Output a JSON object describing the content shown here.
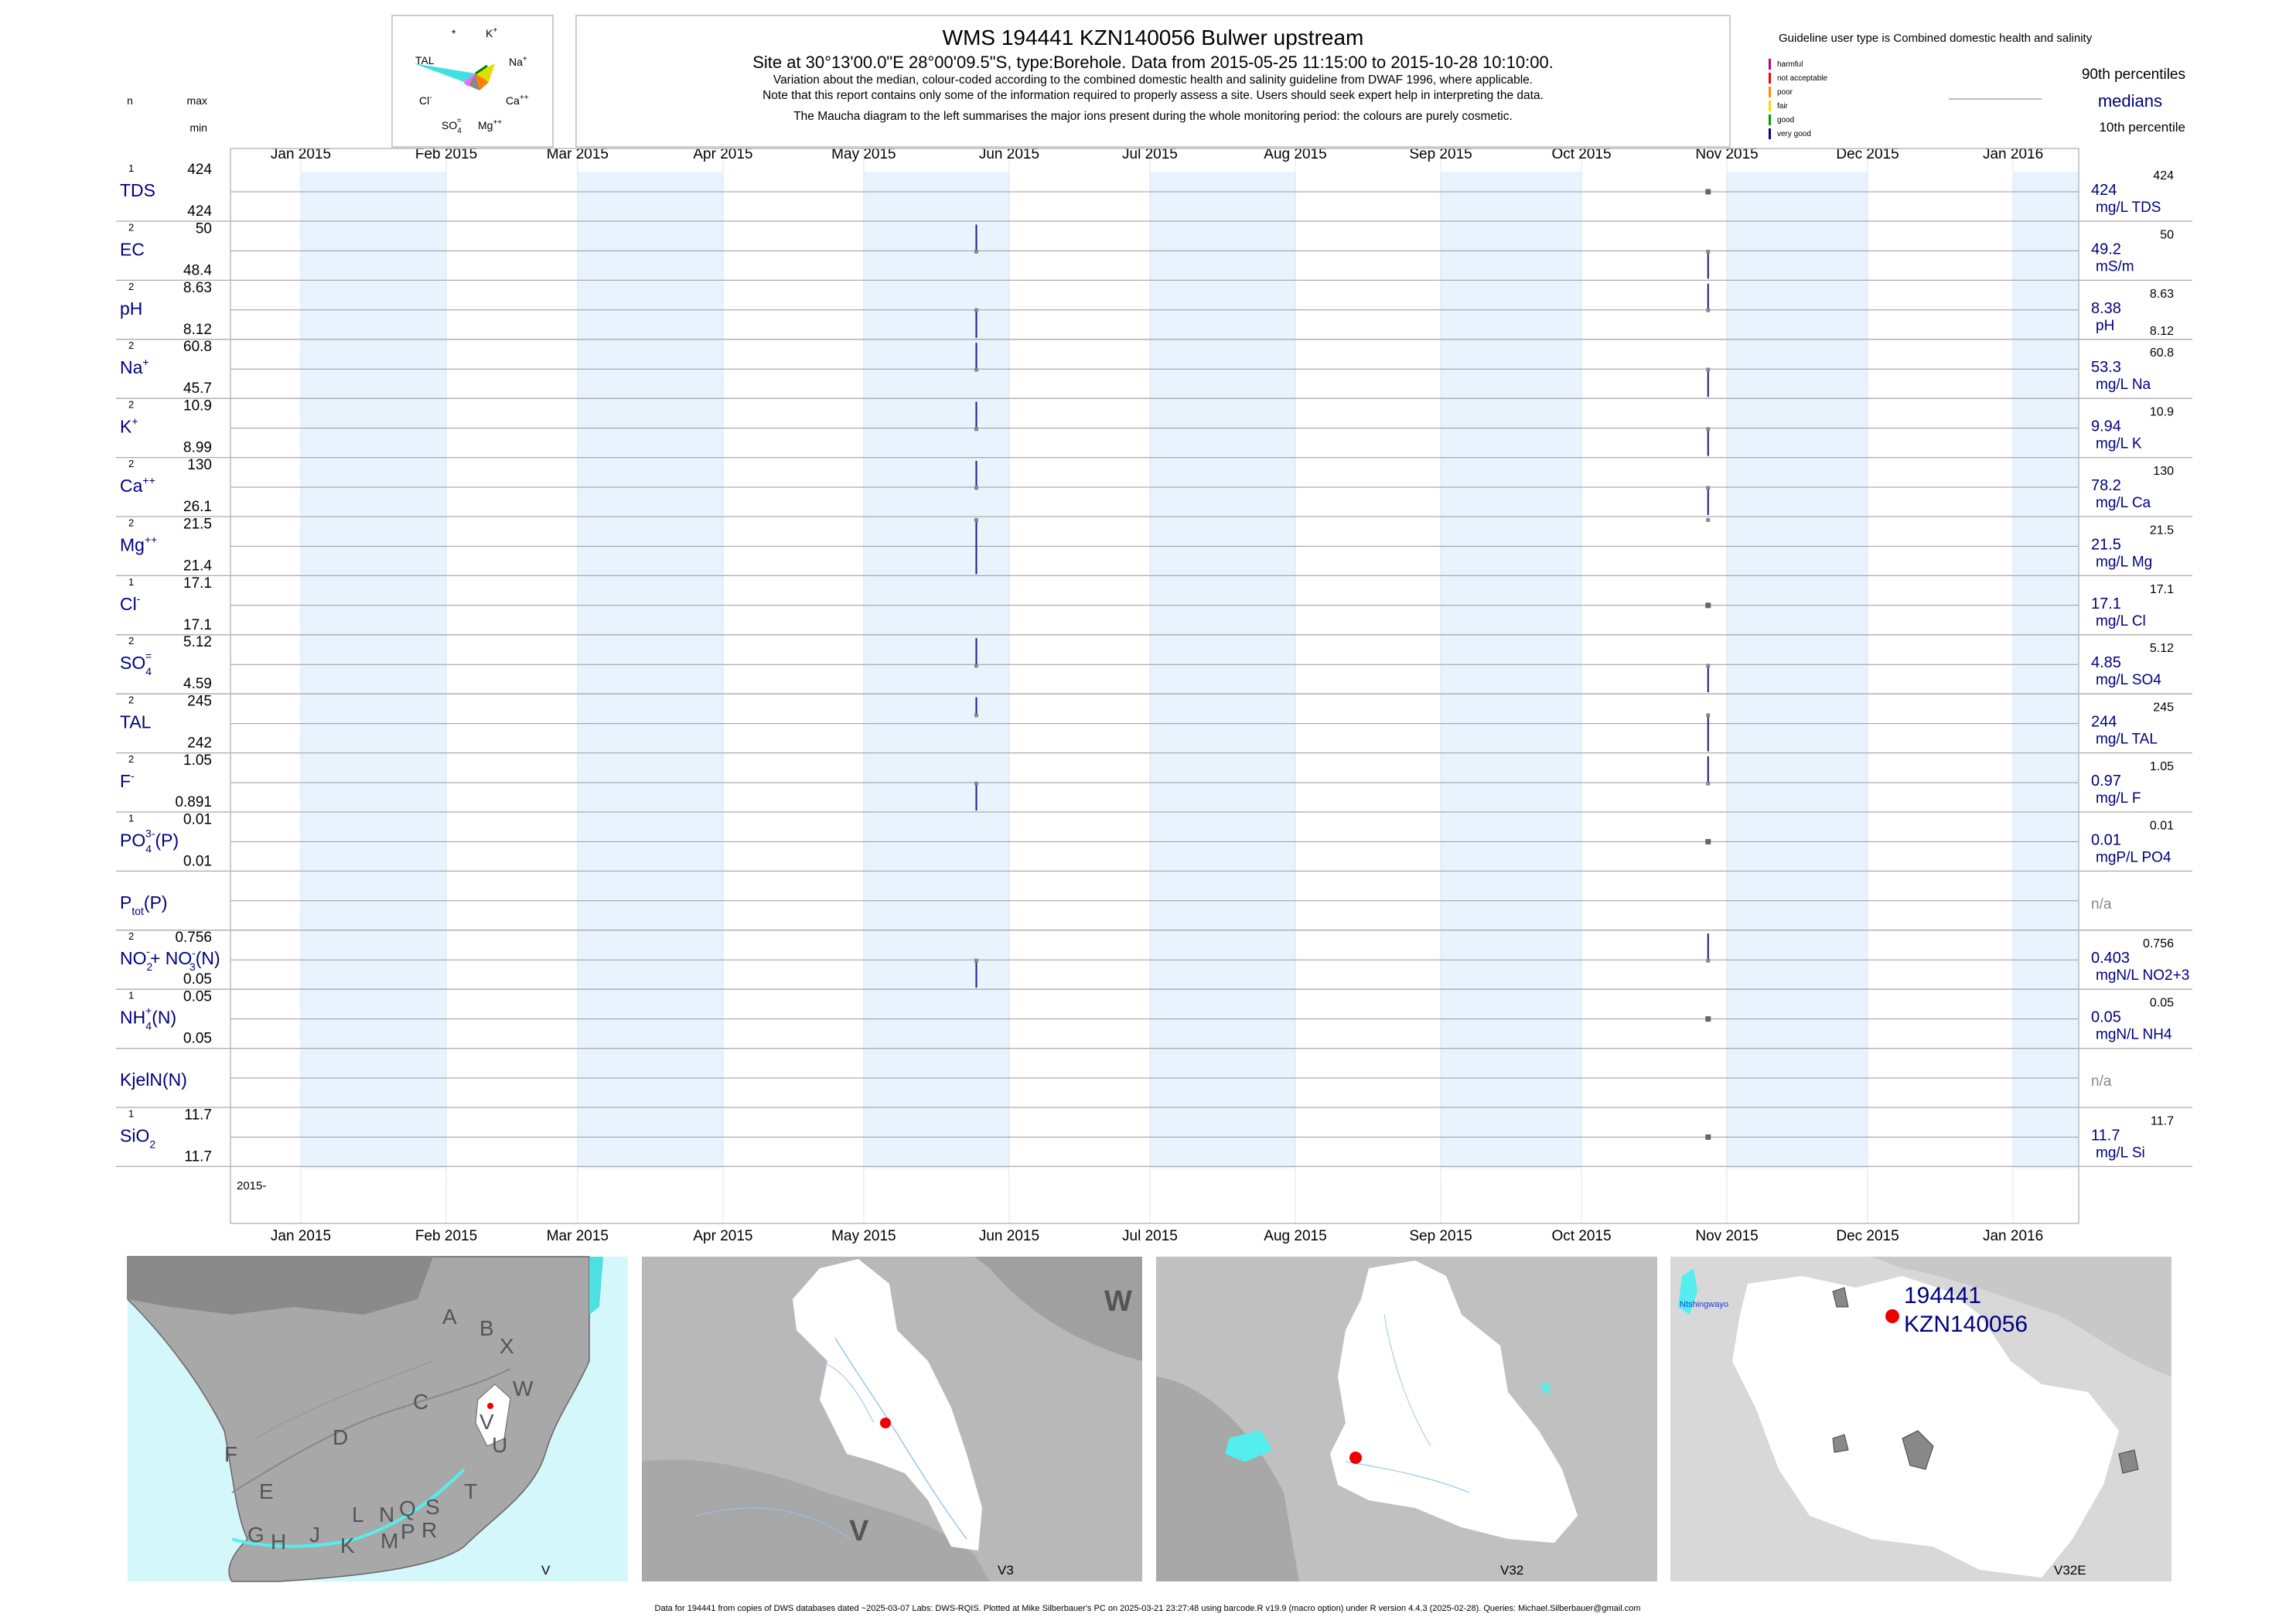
{
  "header": {
    "title": "WMS 194441 KZN140056 Bulwer upstream",
    "subtitle": "Site at 30°13'00.0\"E 28°00'09.5\"S, type:Borehole.  Data from 2015-05-25 11:15:00 to 2015-10-28 10:10:00.",
    "note1": "Variation about the median,  colour-coded according to the combined domestic health and salinity guideline from DWAF 1996, where applicable.",
    "note2": "Note that this report contains only some of the information required to properly assess a site. Users should seek expert help in interpreting the data.",
    "note3": "The Maucha diagram to the left summarises the major ions present during the whole monitoring period: the colours are purely cosmetic."
  },
  "left_header": {
    "n": "n",
    "max": "max",
    "min": "min"
  },
  "maucha": {
    "labels": {
      "star": "*",
      "k": "K",
      "k_sup": "+",
      "tal": "TAL",
      "na": "Na",
      "na_sup": "+",
      "cl": "Cl",
      "cl_sup": "-",
      "ca": "Ca",
      "ca_sup": "++",
      "so4": "SO",
      "so4_sub": "4",
      "so4_sup": "=",
      "mg": "Mg",
      "mg_sup": "++"
    }
  },
  "guideline": {
    "title": "Guideline user type is Combined domestic health and salinity",
    "categories": [
      {
        "label": "harmful",
        "color": "#c0007a"
      },
      {
        "label": "not acceptable",
        "color": "#ff0000"
      },
      {
        "label": "poor",
        "color": "#ff8c00"
      },
      {
        "label": "fair",
        "color": "#ffd700"
      },
      {
        "label": "good",
        "color": "#00a000"
      },
      {
        "label": "very good",
        "color": "#0000a0"
      }
    ],
    "p90": "90th percentiles",
    "medians": "medians",
    "p10": "10th percentile"
  },
  "chart_data": {
    "type": "range",
    "x_axis": {
      "type": "date",
      "range": [
        "2014-12-17",
        "2016-01-15"
      ],
      "ticks": [
        {
          "date": "2015-01-01",
          "label": "Jan 2015"
        },
        {
          "date": "2015-02-01",
          "label": "Feb 2015"
        },
        {
          "date": "2015-03-01",
          "label": "Mar 2015"
        },
        {
          "date": "2015-04-01",
          "label": "Apr 2015"
        },
        {
          "date": "2015-05-01",
          "label": "May 2015"
        },
        {
          "date": "2015-06-01",
          "label": "Jun 2015"
        },
        {
          "date": "2015-07-01",
          "label": "Jul 2015"
        },
        {
          "date": "2015-08-01",
          "label": "Aug 2015"
        },
        {
          "date": "2015-09-01",
          "label": "Sep 2015"
        },
        {
          "date": "2015-10-01",
          "label": "Oct 2015"
        },
        {
          "date": "2015-11-01",
          "label": "Nov 2015"
        },
        {
          "date": "2015-12-01",
          "label": "Dec 2015"
        },
        {
          "date": "2016-01-01",
          "label": "Jan 2016"
        }
      ],
      "bottom_label": "2015-",
      "dates": [
        "2015-05-25",
        "2015-10-28"
      ]
    },
    "series": [
      {
        "name": "TDS",
        "sup": "",
        "sub": "",
        "post": "",
        "n": "1",
        "max": "424",
        "min": "424",
        "median": "424",
        "unit": "mg/L TDS",
        "p90": "424",
        "p10": "",
        "ylim": [
          423,
          425
        ],
        "values": [
          null,
          424
        ]
      },
      {
        "name": "EC",
        "sup": "",
        "sub": "",
        "post": "",
        "n": "2",
        "max": "50",
        "min": "48.4",
        "median": "49.2",
        "unit": "mS/m",
        "p90": "50",
        "p10": "",
        "ylim": [
          48.4,
          50
        ],
        "values": [
          50,
          48.4
        ]
      },
      {
        "name": "pH",
        "sup": "",
        "sub": "",
        "post": "",
        "n": "2",
        "max": "8.63",
        "min": "8.12",
        "median": "8.38",
        "unit": "pH",
        "p90": "8.63",
        "p10": "8.12",
        "ylim": [
          8.12,
          8.63
        ],
        "values": [
          8.12,
          8.63
        ]
      },
      {
        "name": "Na",
        "sup": "+",
        "sub": "",
        "post": "",
        "n": "2",
        "max": "60.8",
        "min": "45.7",
        "median": "53.3",
        "unit": "mg/L Na",
        "p90": "60.8",
        "p10": "",
        "ylim": [
          45.7,
          60.8
        ],
        "values": [
          60.8,
          45.7
        ]
      },
      {
        "name": "K",
        "sup": "+",
        "sub": "",
        "post": "",
        "n": "2",
        "max": "10.9",
        "min": "8.99",
        "median": "9.94",
        "unit": "mg/L K",
        "p90": "10.9",
        "p10": "",
        "ylim": [
          8.99,
          10.9
        ],
        "values": [
          10.9,
          8.99
        ]
      },
      {
        "name": "Ca",
        "sup": "++",
        "sub": "",
        "post": "",
        "n": "2",
        "max": "130",
        "min": "26.1",
        "median": "78.2",
        "unit": "mg/L Ca",
        "p90": "130",
        "p10": "",
        "ylim": [
          26.1,
          130
        ],
        "values": [
          130,
          26.1
        ]
      },
      {
        "name": "Mg",
        "sup": "++",
        "sub": "",
        "post": "",
        "n": "2",
        "max": "21.5",
        "min": "21.4",
        "median": "21.5",
        "unit": "mg/L Mg",
        "p90": "21.5",
        "p10": "",
        "ylim": [
          21.4,
          21.5
        ],
        "values": [
          21.4,
          21.5
        ]
      },
      {
        "name": "Cl",
        "sup": "-",
        "sub": "",
        "post": "",
        "n": "1",
        "max": "17.1",
        "min": "17.1",
        "median": "17.1",
        "unit": "mg/L Cl",
        "p90": "17.1",
        "p10": "",
        "ylim": [
          16.1,
          18.1
        ],
        "values": [
          null,
          17.1
        ]
      },
      {
        "name": "SO",
        "sup": "=",
        "sub": "4",
        "post": "",
        "n": "2",
        "max": "5.12",
        "min": "4.59",
        "median": "4.85",
        "unit": "mg/L SO4",
        "p90": "5.12",
        "p10": "",
        "ylim": [
          4.59,
          5.12
        ],
        "values": [
          5.12,
          4.59
        ]
      },
      {
        "name": "TAL",
        "sup": "",
        "sub": "",
        "post": "",
        "n": "2",
        "max": "245",
        "min": "242",
        "median": "244",
        "unit": "mg/L TAL",
        "p90": "245",
        "p10": "",
        "ylim": [
          242,
          245
        ],
        "values": [
          245,
          242
        ]
      },
      {
        "name": "F",
        "sup": "-",
        "sub": "",
        "post": "",
        "n": "2",
        "max": "1.05",
        "min": "0.891",
        "median": "0.97",
        "unit": "mg/L F",
        "p90": "1.05",
        "p10": "",
        "ylim": [
          0.891,
          1.05
        ],
        "values": [
          0.891,
          1.05
        ]
      },
      {
        "name": "PO",
        "sup": "3-",
        "sub": "4",
        "post": "(P)",
        "n": "1",
        "max": "0.01",
        "min": "0.01",
        "median": "0.01",
        "unit": "mgP/L PO4",
        "p90": "0.01",
        "p10": "",
        "ylim": [
          0,
          0.02
        ],
        "values": [
          null,
          0.01
        ]
      },
      {
        "name": "P",
        "sup": "",
        "sub": "tot",
        "post": "(P)",
        "n": "",
        "max": "",
        "min": "",
        "median": "n/a",
        "unit": "",
        "p90": "",
        "p10": "",
        "ylim": [
          0,
          1
        ],
        "values": [
          null,
          null
        ]
      },
      {
        "name": "NO",
        "sup": "-",
        "sub": "2",
        "post": "+ NO",
        "sup2": "-",
        "sub2": "3",
        "post2": "(N)",
        "n": "2",
        "max": "0.756",
        "min": "0.05",
        "median": "0.403",
        "unit": "mgN/L NO2+3",
        "p90": "0.756",
        "p10": "",
        "ylim": [
          0.05,
          0.756
        ],
        "values": [
          0.05,
          0.756
        ]
      },
      {
        "name": "NH",
        "sup": "+",
        "sub": "4",
        "post": "(N)",
        "n": "1",
        "max": "0.05",
        "min": "0.05",
        "median": "0.05",
        "unit": "mgN/L NH4",
        "p90": "0.05",
        "p10": "",
        "ylim": [
          0.04,
          0.06
        ],
        "values": [
          null,
          0.05
        ]
      },
      {
        "name": "KjelN(N)",
        "sup": "",
        "sub": "",
        "post": "",
        "n": "",
        "max": "",
        "min": "",
        "median": "n/a",
        "unit": "",
        "p90": "",
        "p10": "",
        "ylim": [
          0,
          1
        ],
        "values": [
          null,
          null
        ]
      },
      {
        "name": "SiO",
        "sup": "",
        "sub": "2",
        "post": "",
        "n": "1",
        "max": "11.7",
        "min": "11.7",
        "median": "11.7",
        "unit": "mg/L Si",
        "p90": "11.7",
        "p10": "",
        "ylim": [
          10.7,
          12.7
        ],
        "values": [
          null,
          11.7
        ]
      }
    ]
  },
  "maps": [
    {
      "label": "V",
      "regions": [
        "A",
        "B",
        "X",
        "C",
        "W",
        "V",
        "D",
        "U",
        "F",
        "T",
        "E",
        "L",
        "N",
        "Q",
        "S",
        "G",
        "H",
        "J",
        "K",
        "M",
        "P",
        "R"
      ]
    },
    {
      "label": "V3",
      "regions": [
        "W",
        "V"
      ]
    },
    {
      "label": "V32",
      "regions": []
    },
    {
      "label": "V32E",
      "place": "Ntshingwayo",
      "site_id": "194441",
      "site_code": "KZN140056"
    }
  ],
  "footer": "Data for 194441 from copies of DWS databases dated ~2025-03-07 Labs: DWS-RQIS. Plotted at Mike Silberbauer's PC on 2025-03-21 23:27:48 using barcode.R v19.9 (macro option) under R version 4.4.3 (2025-02-28). Queries: Michael.Silberbauer@gmail.com",
  "colors": {
    "band": "#e8f3fd",
    "sample": "#1a1a80",
    "ink": "#000080",
    "map_sea": "#d4f7fb",
    "map_land": "#a8a8a8",
    "map_catch": "#ffffff",
    "site": "#ee0000"
  }
}
